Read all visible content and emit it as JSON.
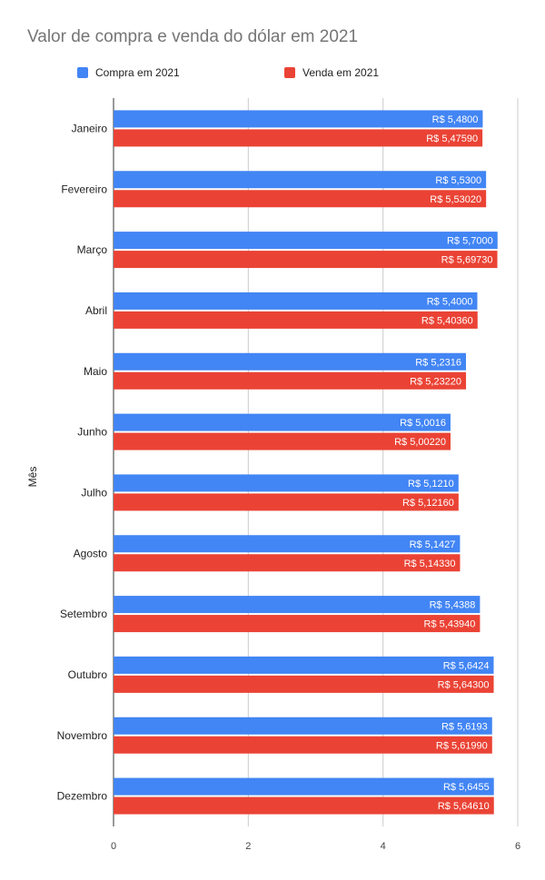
{
  "chart_data": {
    "type": "bar",
    "orientation": "horizontal",
    "title": "Valor de compra e venda do dólar em 2021",
    "xlabel": "",
    "ylabel": "Mês",
    "xlim": [
      0,
      6
    ],
    "xticks": [
      "0",
      "2",
      "4",
      "6"
    ],
    "grid": true,
    "legend_position": "top-left",
    "categories": [
      "Janeiro",
      "Fevereiro",
      "Março",
      "Abril",
      "Maio",
      "Junho",
      "Julho",
      "Agosto",
      "Setembro",
      "Outubro",
      "Novembro",
      "Dezembro"
    ],
    "series": [
      {
        "name": "Compra em 2021",
        "color": "#4285f4",
        "values": [
          5.48,
          5.53,
          5.7,
          5.4,
          5.2316,
          5.0016,
          5.121,
          5.1427,
          5.4388,
          5.6424,
          5.6193,
          5.6455
        ],
        "labels": [
          "R$ 5,4800",
          "R$ 5,5300",
          "R$ 5,7000",
          "R$ 5,4000",
          "R$ 5,2316",
          "R$ 5,0016",
          "R$ 5,1210",
          "R$ 5,1427",
          "R$ 5,4388",
          "R$ 5,6424",
          "R$ 5,6193",
          "R$ 5,6455"
        ]
      },
      {
        "name": "Venda em 2021",
        "color": "#ea4335",
        "values": [
          5.4759,
          5.5302,
          5.6973,
          5.4036,
          5.2322,
          5.0022,
          5.1216,
          5.1433,
          5.4394,
          5.643,
          5.6199,
          5.6461
        ],
        "labels": [
          "R$ 5,47590",
          "R$ 5,53020",
          "R$ 5,69730",
          "R$ 5,40360",
          "R$ 5,23220",
          "R$ 5,00220",
          "R$ 5,12160",
          "R$ 5,14330",
          "R$ 5,43940",
          "R$ 5,64300",
          "R$ 5,61990",
          "R$ 5,64610"
        ]
      }
    ]
  }
}
